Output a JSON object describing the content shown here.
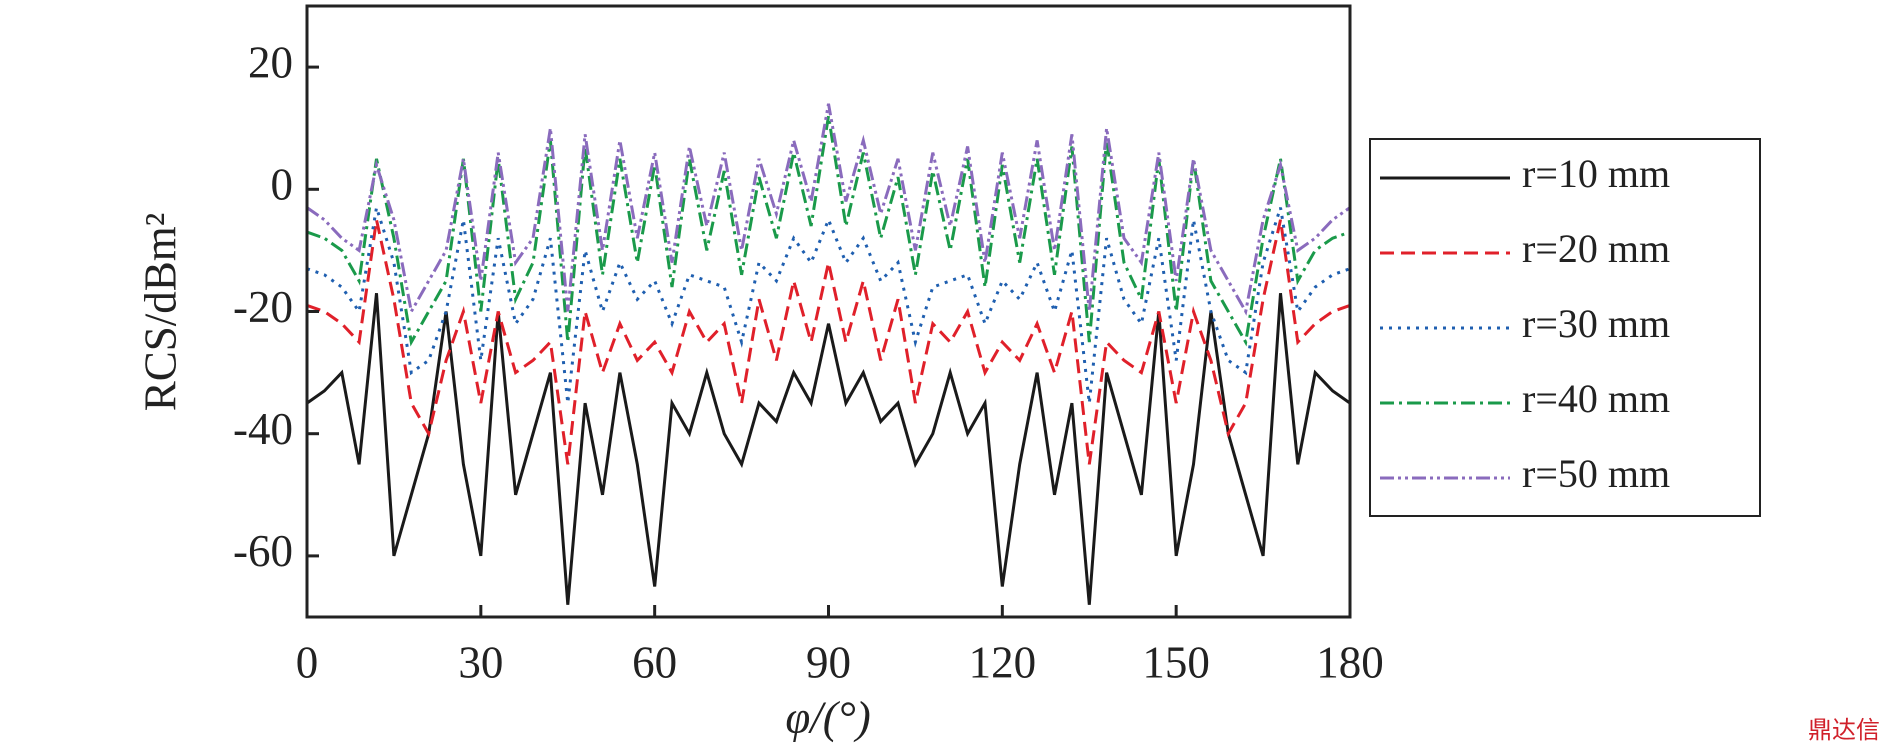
{
  "chart_data": {
    "type": "line",
    "xlabel": "φ/(°)",
    "ylabel": "RCS/dBm²",
    "x": [
      0,
      3,
      6,
      9,
      12,
      15,
      18,
      21,
      24,
      27,
      30,
      33,
      36,
      39,
      42,
      45,
      48,
      51,
      54,
      57,
      60,
      63,
      66,
      69,
      72,
      75,
      78,
      81,
      84,
      87,
      90,
      93,
      96,
      99,
      102,
      105,
      108,
      111,
      114,
      117,
      120,
      123,
      126,
      129,
      132,
      135,
      138,
      141,
      144,
      147,
      150,
      153,
      156,
      159,
      162,
      165,
      168,
      171,
      174,
      177,
      180
    ],
    "xlim": [
      0,
      180
    ],
    "xticks": [
      0,
      30,
      60,
      90,
      120,
      150,
      180
    ],
    "ylim": [
      -70,
      30
    ],
    "yticks": [
      -60,
      -40,
      -20,
      0,
      20
    ],
    "legend": "right",
    "series": [
      {
        "name": "r=10 mm",
        "color": "#1a1a1a",
        "style": "solid",
        "values": [
          -35,
          -33,
          -30,
          -45,
          -17,
          -60,
          -50,
          -40,
          -20,
          -45,
          -60,
          -20,
          -50,
          -40,
          -30,
          -68,
          -35,
          -50,
          -30,
          -45,
          -65,
          -35,
          -40,
          -30,
          -40,
          -45,
          -35,
          -38,
          -30,
          -35,
          -22,
          -35,
          -30,
          -38,
          -35,
          -45,
          -40,
          -30,
          -40,
          -35,
          -65,
          -45,
          -30,
          -50,
          -35,
          -68,
          -30,
          -40,
          -50,
          -20,
          -60,
          -45,
          -20,
          -40,
          -50,
          -60,
          -17,
          -45,
          -30,
          -33,
          -35
        ]
      },
      {
        "name": "r=20 mm",
        "color": "#e0202a",
        "style": "dashed",
        "values": [
          -19,
          -20,
          -22,
          -25,
          -5,
          -18,
          -35,
          -40,
          -28,
          -20,
          -35,
          -20,
          -30,
          -28,
          -25,
          -45,
          -20,
          -30,
          -22,
          -28,
          -25,
          -30,
          -20,
          -25,
          -22,
          -35,
          -18,
          -28,
          -15,
          -25,
          -12,
          -25,
          -15,
          -28,
          -18,
          -35,
          -22,
          -25,
          -20,
          -30,
          -25,
          -28,
          -22,
          -30,
          -20,
          -45,
          -25,
          -28,
          -30,
          -20,
          -35,
          -20,
          -28,
          -40,
          -35,
          -18,
          -5,
          -25,
          -22,
          -20,
          -19
        ]
      },
      {
        "name": "r=30 mm",
        "color": "#1f5fb0",
        "style": "dotted",
        "values": [
          -13,
          -14,
          -16,
          -20,
          -3,
          -12,
          -30,
          -28,
          -20,
          -5,
          -28,
          -8,
          -22,
          -18,
          -8,
          -35,
          -10,
          -20,
          -12,
          -18,
          -15,
          -22,
          -14,
          -15,
          -16,
          -25,
          -12,
          -15,
          -8,
          -12,
          -5,
          -12,
          -8,
          -15,
          -12,
          -25,
          -16,
          -15,
          -14,
          -22,
          -15,
          -18,
          -12,
          -20,
          -10,
          -35,
          -8,
          -18,
          -22,
          -8,
          -28,
          -5,
          -20,
          -28,
          -30,
          -12,
          -3,
          -20,
          -16,
          -14,
          -13
        ]
      },
      {
        "name": "r=40 mm",
        "color": "#1a9a4a",
        "style": "dashdot",
        "values": [
          -7,
          -8,
          -10,
          -15,
          5,
          -8,
          -25,
          -20,
          -15,
          5,
          -20,
          5,
          -18,
          -12,
          8,
          -25,
          7,
          -14,
          5,
          -12,
          4,
          -16,
          5,
          -10,
          3,
          -14,
          2,
          -8,
          6,
          -6,
          12,
          -6,
          6,
          -8,
          2,
          -14,
          3,
          -10,
          5,
          -16,
          4,
          -12,
          5,
          -14,
          7,
          -25,
          8,
          -12,
          -18,
          5,
          -20,
          5,
          -15,
          -20,
          -25,
          -8,
          5,
          -15,
          -10,
          -8,
          -7
        ]
      },
      {
        "name": "r=50 mm",
        "color": "#8a6bbd",
        "style": "dashdotdot",
        "values": [
          -3,
          -5,
          -8,
          -10,
          4,
          -5,
          -20,
          -15,
          -10,
          5,
          -15,
          6,
          -12,
          -8,
          10,
          -20,
          9,
          -10,
          8,
          -8,
          6,
          -12,
          7,
          -6,
          6,
          -10,
          5,
          -4,
          8,
          -2,
          14,
          -2,
          8,
          -4,
          5,
          -10,
          6,
          -6,
          7,
          -12,
          6,
          -8,
          8,
          -10,
          9,
          -20,
          10,
          -8,
          -12,
          6,
          -15,
          5,
          -10,
          -15,
          -20,
          -5,
          4,
          -10,
          -8,
          -5,
          -3
        ]
      }
    ]
  },
  "watermark": "鼎达信"
}
